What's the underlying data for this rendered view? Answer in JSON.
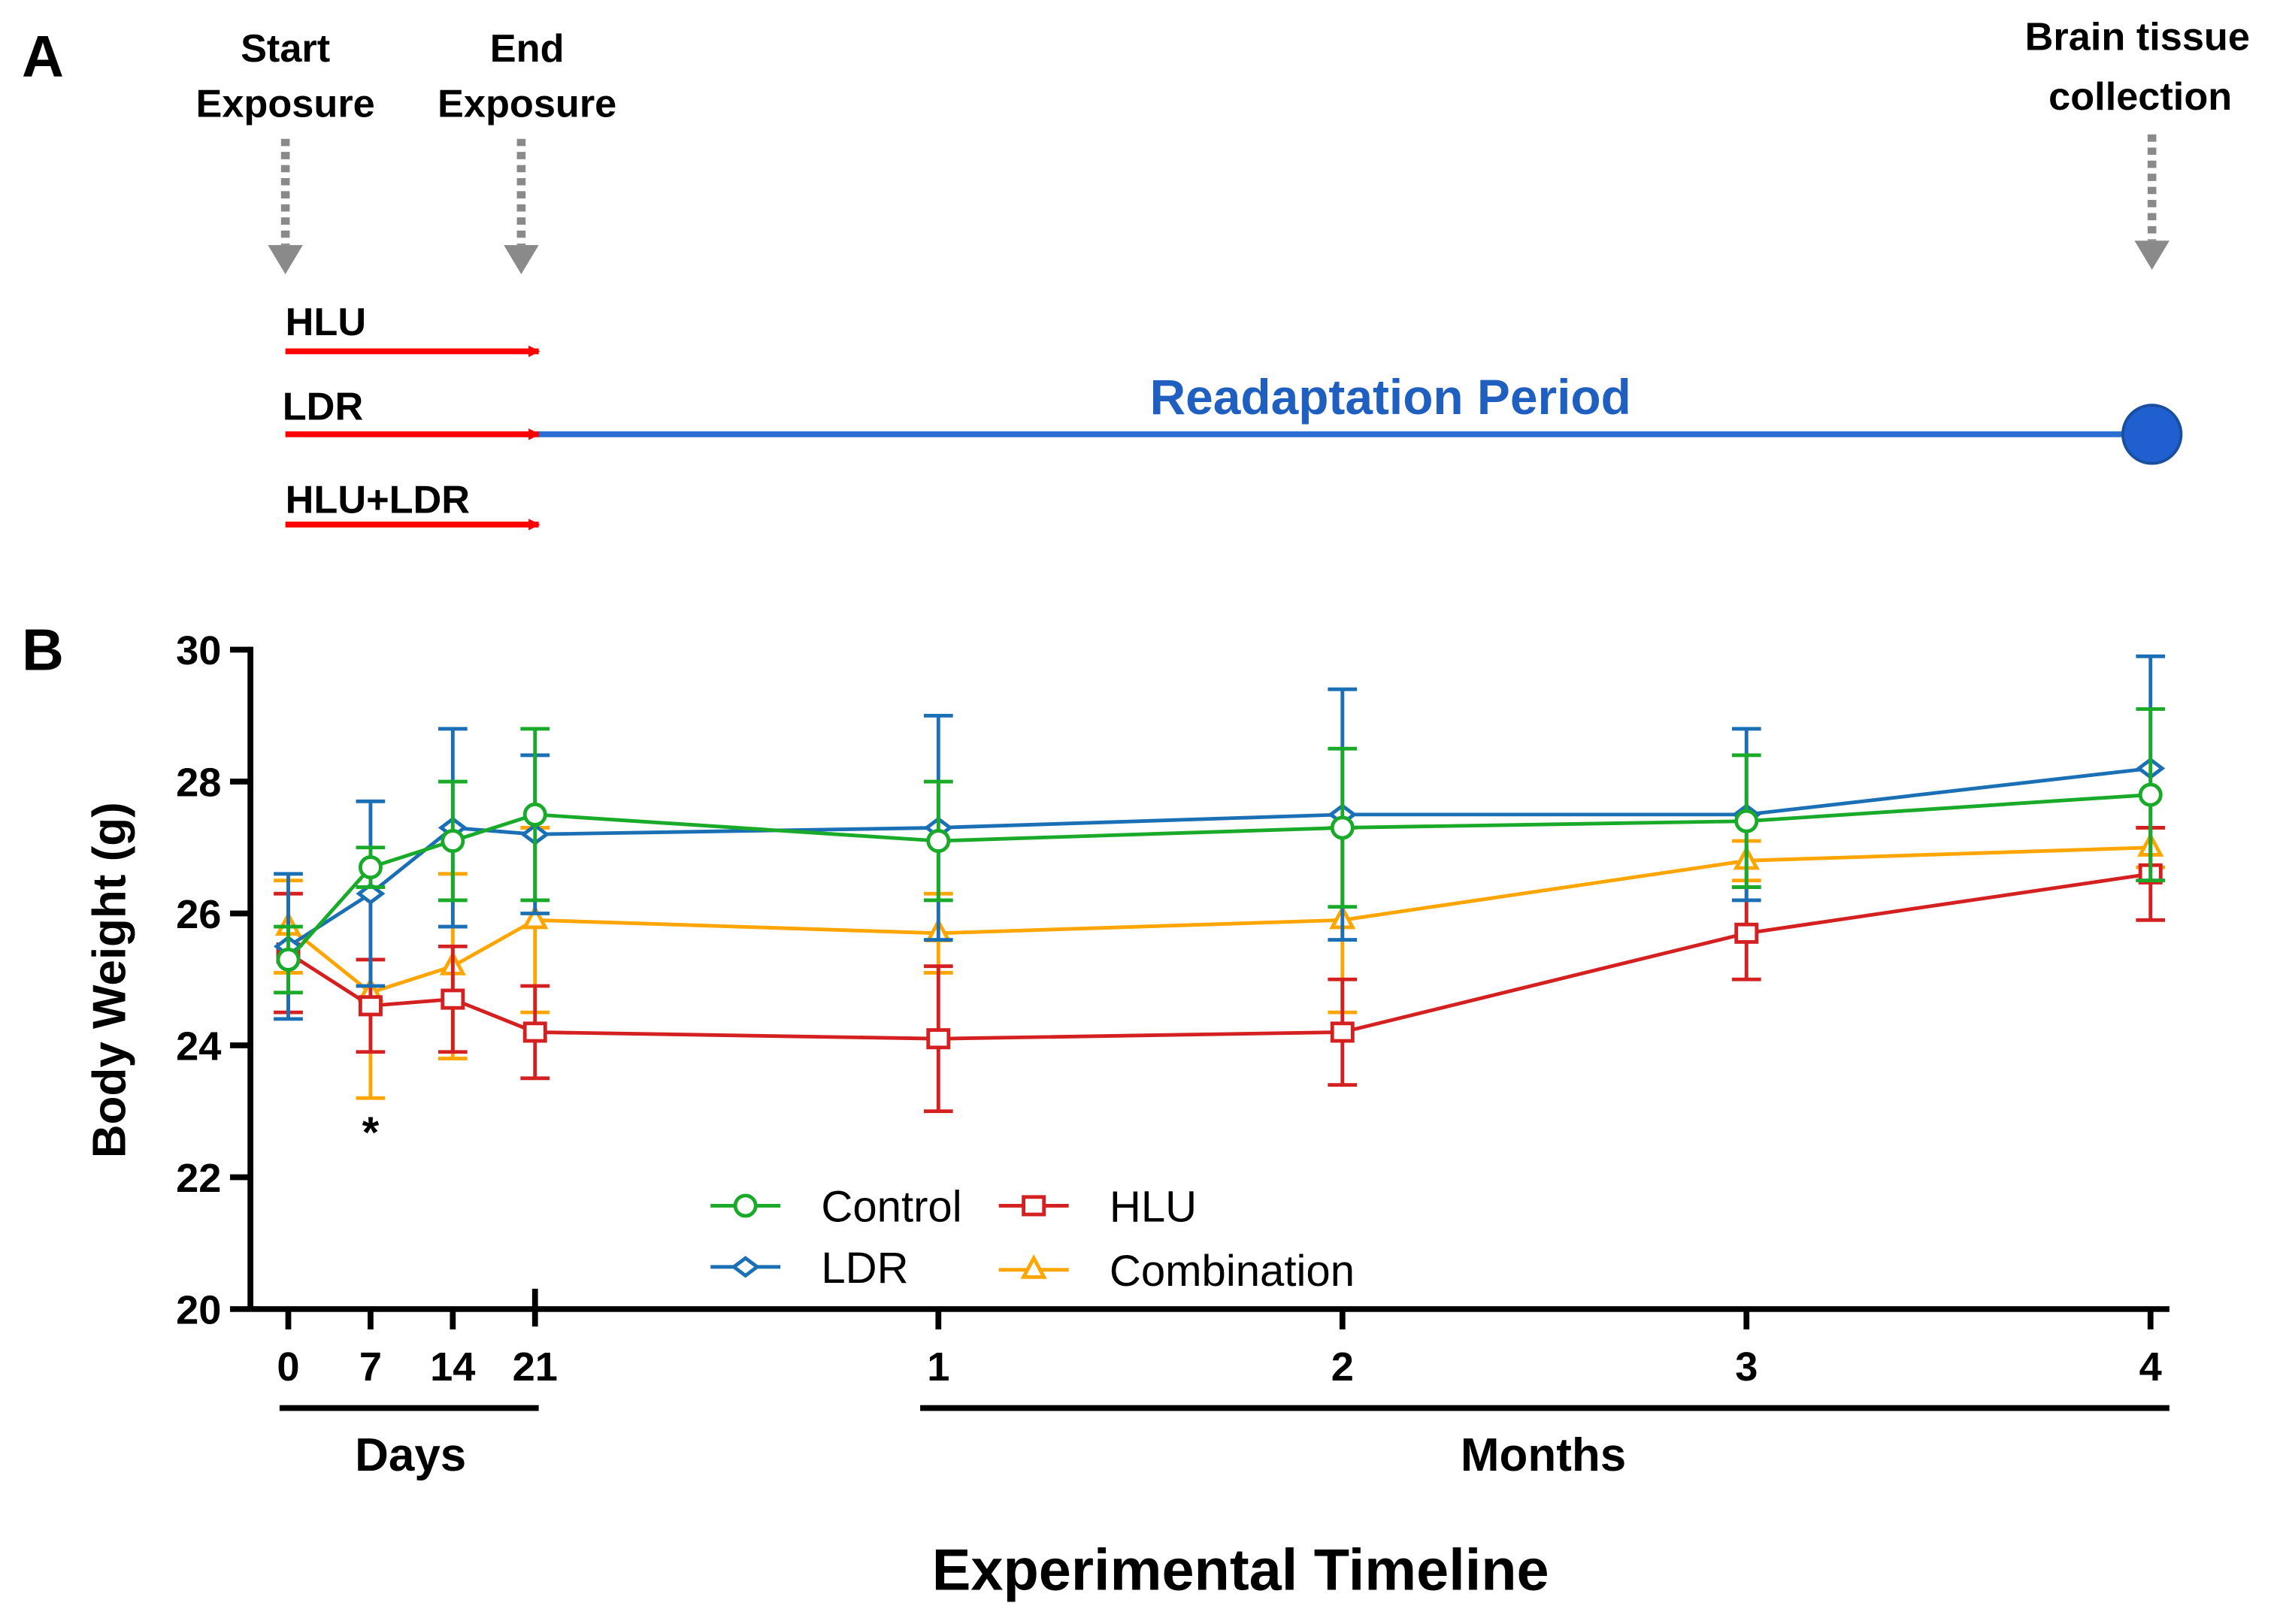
{
  "panel_a": {
    "label": "A",
    "start_label": [
      "Start",
      "Exposure"
    ],
    "end_label": [
      "End",
      "Exposure"
    ],
    "collection_label": [
      "Brain tissue",
      "collection"
    ],
    "groups": [
      "HLU",
      "LDR",
      "HLU+LDR"
    ],
    "period_label": "Readaptation Period",
    "colors": {
      "exposure": "#ff0000",
      "period": "#1f5fbf",
      "marker": "#1f5fcf",
      "arrow": "#8a8a8a"
    }
  },
  "chart_data": {
    "type": "line",
    "panel_label": "B",
    "ylabel": "Body Weight (g)",
    "xlabel": "Experimental Timeline",
    "ylim": [
      20,
      30
    ],
    "yticks": [
      20,
      22,
      24,
      26,
      28,
      30
    ],
    "x_points": [
      {
        "unit": "day",
        "value": 0,
        "label": "0"
      },
      {
        "unit": "day",
        "value": 7,
        "label": "7"
      },
      {
        "unit": "day",
        "value": 14,
        "label": "14"
      },
      {
        "unit": "day",
        "value": 21,
        "label": "21"
      },
      {
        "unit": "month",
        "value": 1,
        "label": "1"
      },
      {
        "unit": "month",
        "value": 2,
        "label": "2"
      },
      {
        "unit": "month",
        "value": 3,
        "label": "3"
      },
      {
        "unit": "month",
        "value": 4,
        "label": "4"
      }
    ],
    "x_group_labels": {
      "days": "Days",
      "months": "Months"
    },
    "annotations": [
      {
        "text": "*",
        "x_index": 1
      }
    ],
    "legend_position": "bottom-center",
    "series": [
      {
        "name": "Control",
        "color": "#1aaa2a",
        "marker": "circle",
        "values": [
          25.3,
          26.7,
          27.1,
          27.5,
          27.1,
          27.3,
          27.4,
          27.8
        ],
        "errors": [
          0.5,
          0.3,
          0.9,
          1.3,
          0.9,
          1.2,
          1.0,
          1.3
        ]
      },
      {
        "name": "LDR",
        "color": "#1a6fb5",
        "marker": "diamond",
        "values": [
          25.5,
          26.3,
          27.3,
          27.2,
          27.3,
          27.5,
          27.5,
          28.2
        ],
        "errors": [
          1.1,
          1.4,
          1.5,
          1.2,
          1.7,
          1.9,
          1.3,
          1.7
        ]
      },
      {
        "name": "HLU",
        "color": "#d42020",
        "marker": "square",
        "values": [
          25.4,
          24.6,
          24.7,
          24.2,
          24.1,
          24.2,
          25.7,
          26.6
        ],
        "errors": [
          0.9,
          0.7,
          0.8,
          0.7,
          1.1,
          0.8,
          0.7,
          0.7
        ]
      },
      {
        "name": "Combination",
        "color": "#ffa500",
        "marker": "triangle",
        "values": [
          25.8,
          24.8,
          25.2,
          25.9,
          25.7,
          25.9,
          26.8,
          27.0
        ],
        "errors": [
          0.7,
          1.6,
          1.4,
          1.4,
          0.6,
          1.4,
          0.3,
          0.3
        ]
      }
    ]
  }
}
